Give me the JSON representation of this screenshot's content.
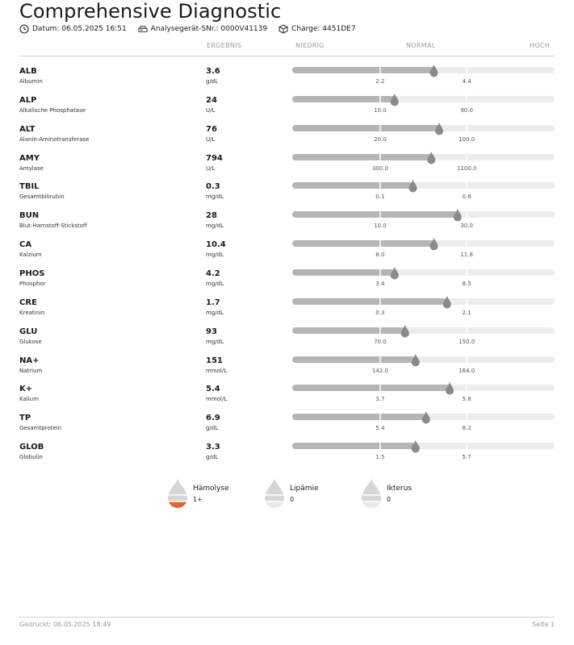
{
  "header": {
    "title": "Comprehensive Diagnostic",
    "date": "Datum: 06.05.2025 16:51",
    "device": "Analysegerät-SNr.: 0000V41139",
    "lot": "Charge: 4451DE7"
  },
  "columns": {
    "result": "ERGEBNIS",
    "low": "NIEDRIG",
    "normal": "NORMAL",
    "high": "HOCH"
  },
  "rows": [
    {
      "code": "ALB",
      "name": "Albumin",
      "value": "3.6",
      "unit": "g/dL",
      "low": "2.2",
      "high": "4.4",
      "position": 0.54
    },
    {
      "code": "ALP",
      "name": "Alkalische Phosphatase",
      "value": "24",
      "unit": "U/L",
      "low": "10.0",
      "high": "90.0",
      "position": 0.39
    },
    {
      "code": "ALT",
      "name": "Alanin-Aminotransferase",
      "value": "76",
      "unit": "U/L",
      "low": "20.0",
      "high": "100.0",
      "position": 0.56
    },
    {
      "code": "AMY",
      "name": "Amylase",
      "value": "794",
      "unit": "U/L",
      "low": "300.0",
      "high": "1100.0",
      "position": 0.53
    },
    {
      "code": "TBIL",
      "name": "Gesamtbilirubin",
      "value": "0.3",
      "unit": "mg/dL",
      "low": "0.1",
      "high": "0.6",
      "position": 0.46
    },
    {
      "code": "BUN",
      "name": "Blut-Harnstoff-Stickstoff",
      "value": "28",
      "unit": "mg/dL",
      "low": "10.0",
      "high": "30.0",
      "position": 0.63
    },
    {
      "code": "CA",
      "name": "Kalzium",
      "value": "10.4",
      "unit": "mg/dL",
      "low": "8.0",
      "high": "11.8",
      "position": 0.54
    },
    {
      "code": "PHOS",
      "name": "Phosphor",
      "value": "4.2",
      "unit": "mg/dL",
      "low": "3.4",
      "high": "8.5",
      "position": 0.39
    },
    {
      "code": "CRE",
      "name": "Kreatinin",
      "value": "1.7",
      "unit": "mg/dL",
      "low": "0.3",
      "high": "2.1",
      "position": 0.59
    },
    {
      "code": "GLU",
      "name": "Glukose",
      "value": "93",
      "unit": "mg/dL",
      "low": "70.0",
      "high": "150.0",
      "position": 0.43
    },
    {
      "code": "NA+",
      "name": "Natrium",
      "value": "151",
      "unit": "mmol/L",
      "low": "142.0",
      "high": "164.0",
      "position": 0.47
    },
    {
      "code": "K+",
      "name": "Kalium",
      "value": "5.4",
      "unit": "mmol/L",
      "low": "3.7",
      "high": "5.8",
      "position": 0.6
    },
    {
      "code": "TP",
      "name": "Gesamtprotein",
      "value": "6.9",
      "unit": "g/dL",
      "low": "5.4",
      "high": "8.2",
      "position": 0.51
    },
    {
      "code": "GLOB",
      "name": "Globulin",
      "value": "3.3",
      "unit": "g/dL",
      "low": "1.5",
      "high": "5.7",
      "position": 0.47
    }
  ],
  "serum_indices": [
    {
      "label": "Hämolyse",
      "value": "1+",
      "fill": 1
    },
    {
      "label": "Lipämie",
      "value": "0",
      "fill": 0
    },
    {
      "label": "Ikterus",
      "value": "0",
      "fill": 0
    }
  ],
  "footer": {
    "printed": "Gedruckt: 06.05.2025 18:49",
    "page": "Seite 1"
  },
  "colors": {
    "bar_fill": "#b5b5b5",
    "bar_track": "#ececec",
    "marker": "#8a8a8a",
    "hemolysis": "#e0662b",
    "drop_empty": "#d6d6d6"
  }
}
